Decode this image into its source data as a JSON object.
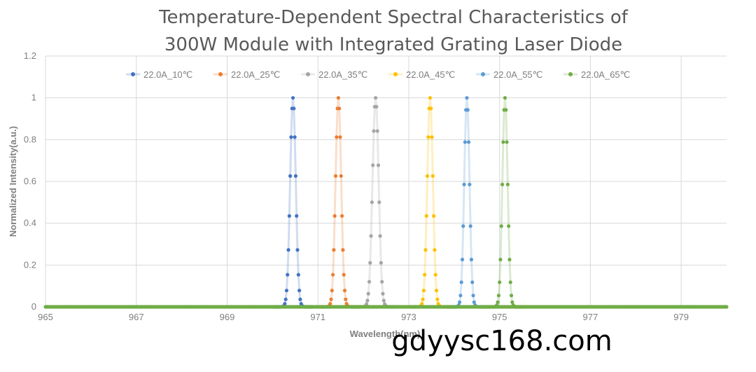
{
  "chart_data": {
    "type": "scatter",
    "title_lines": [
      "Temperature-Dependent Spectral Characteristics of",
      "300W  Module with Integrated Grating Laser Diode"
    ],
    "xlabel": "Wavelength(nm)",
    "ylabel": "Normalized Intensity(a.u.)",
    "xlim": [
      965,
      980
    ],
    "ylim": [
      0,
      1.2
    ],
    "x_ticks": [
      965,
      967,
      969,
      971,
      973,
      975,
      977,
      979
    ],
    "y_ticks": [
      0,
      0.2,
      0.4,
      0.6,
      0.8,
      1,
      1.2
    ],
    "y_tick_labels": [
      "0",
      "0.2",
      "0.4",
      "0.6",
      "0.8",
      "1",
      "1.2"
    ],
    "grid": true,
    "legend_position": "top",
    "series": [
      {
        "name": "22.0A_10℃",
        "color": "#4472c4",
        "peak": 970.45,
        "sigma": 0.062
      },
      {
        "name": "22.0A_25℃",
        "color": "#ed7d31",
        "peak": 971.45,
        "sigma": 0.062
      },
      {
        "name": "22.0A_35℃",
        "color": "#a5a5a5",
        "peak": 972.27,
        "sigma": 0.068
      },
      {
        "name": "22.0A_45℃",
        "color": "#ffc000",
        "peak": 973.47,
        "sigma": 0.062
      },
      {
        "name": "22.0A_55℃",
        "color": "#5b9bd5",
        "peak": 974.28,
        "sigma": 0.058
      },
      {
        "name": "22.0A_65℃",
        "color": "#70ad47",
        "peak": 975.12,
        "sigma": 0.058
      }
    ],
    "baseline_value": 0
  },
  "watermark": "gdyysc168.com"
}
